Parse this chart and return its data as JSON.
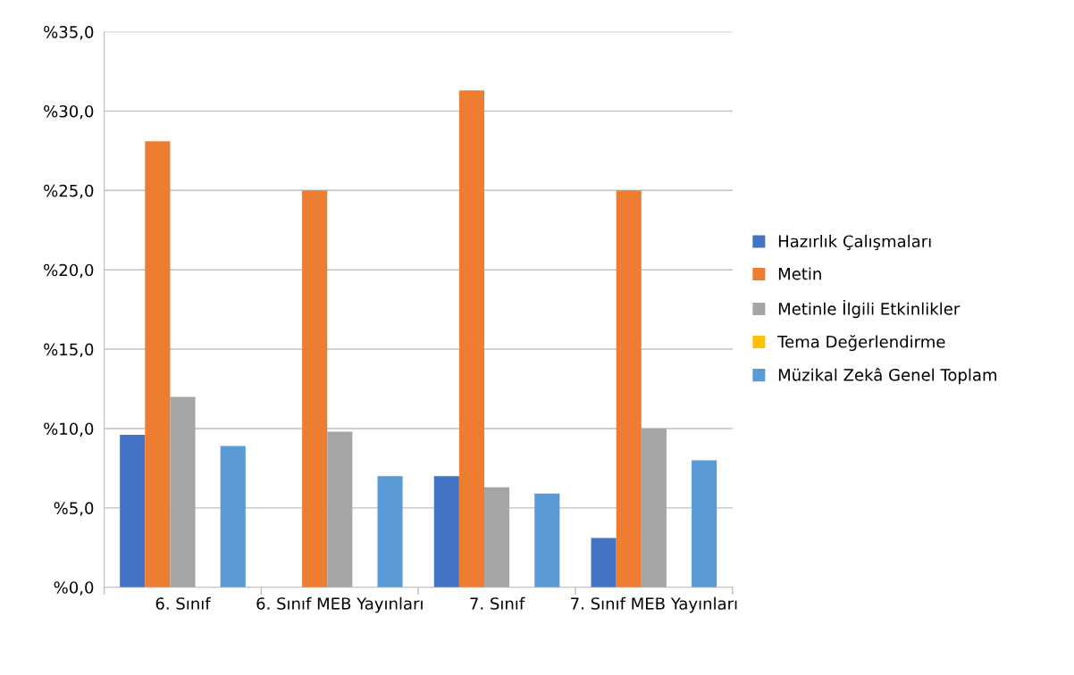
{
  "chart_data": {
    "type": "bar",
    "categories": [
      "6. Sınıf",
      "6. Sınıf MEB Yayınları",
      "7. Sınıf",
      "7. Sınıf MEB Yayınları"
    ],
    "series": [
      {
        "name": "Hazırlık Çalışmaları",
        "color": "#4472c4",
        "values": [
          9.6,
          0,
          7.0,
          3.1
        ]
      },
      {
        "name": "Metin",
        "color": "#ed7d31",
        "values": [
          28.1,
          25.0,
          31.3,
          25.0
        ]
      },
      {
        "name": "Metinle İlgili Etkinlikler",
        "color": "#a5a5a5",
        "values": [
          12.0,
          9.8,
          6.3,
          10.0
        ]
      },
      {
        "name": "Tema Değerlendirme",
        "color": "#ffc000",
        "values": [
          0,
          0,
          0,
          0
        ]
      },
      {
        "name": "Müzikal Zekâ Genel Toplam",
        "color": "#5b9bd5",
        "values": [
          8.9,
          7.0,
          5.9,
          8.0
        ]
      }
    ],
    "ylim": [
      0,
      35
    ],
    "yticks": [
      {
        "value": 0,
        "label": "%0,0"
      },
      {
        "value": 5,
        "label": "%5,0"
      },
      {
        "value": 10,
        "label": "%10,0"
      },
      {
        "value": 15,
        "label": "%15,0"
      },
      {
        "value": 20,
        "label": "%20,0"
      },
      {
        "value": 25,
        "label": "%25,0"
      },
      {
        "value": 30,
        "label": "%30,0"
      },
      {
        "value": 35,
        "label": "%35,0"
      }
    ],
    "grid": "y",
    "legend": "right"
  }
}
